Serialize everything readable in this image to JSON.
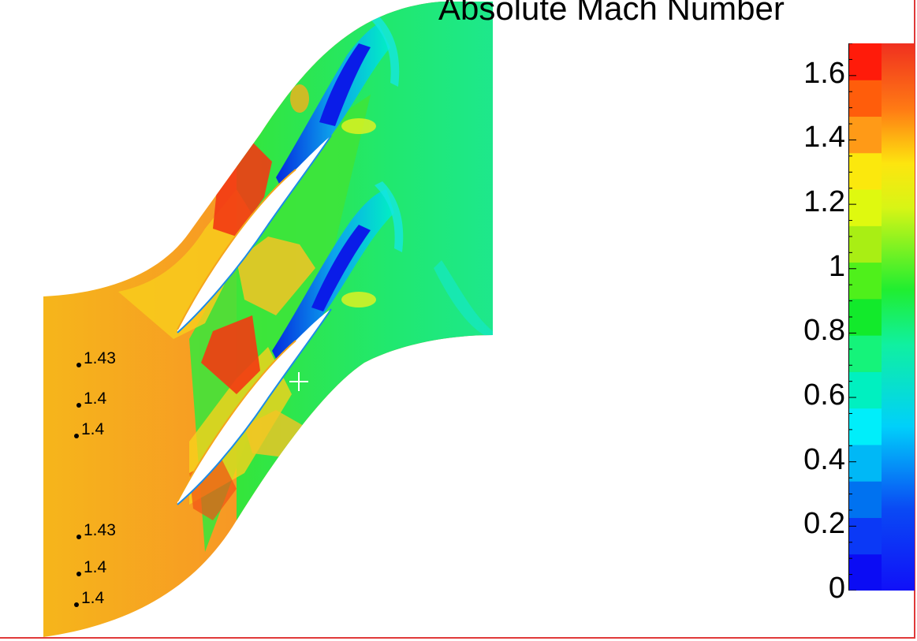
{
  "title": "Absolute Mach Number",
  "probes": [
    {
      "label": "1.43"
    },
    {
      "label": "1.4"
    },
    {
      "label": "1.4"
    },
    {
      "label": "1.43"
    },
    {
      "label": "1.4"
    },
    {
      "label": "1.4"
    }
  ],
  "colorbar": {
    "ticks": [
      "1.6",
      "1.4",
      "1.2",
      "1",
      "0.8",
      "0.6",
      "0.4",
      "0.2",
      "0"
    ],
    "range": [
      0,
      1.7
    ],
    "bands": [
      "#0b0cf4",
      "#0b39f6",
      "#0072f0",
      "#00b8f6",
      "#00eefa",
      "#00f0c0",
      "#15f37a",
      "#12ea2b",
      "#4ff01b",
      "#a9ee14",
      "#dff90f",
      "#fbe80d",
      "#ff9a17",
      "#ff5d0b",
      "#ff1b0a"
    ]
  },
  "colors": {
    "frame": "#e03a3a",
    "blade_gap": "#ffffff"
  }
}
